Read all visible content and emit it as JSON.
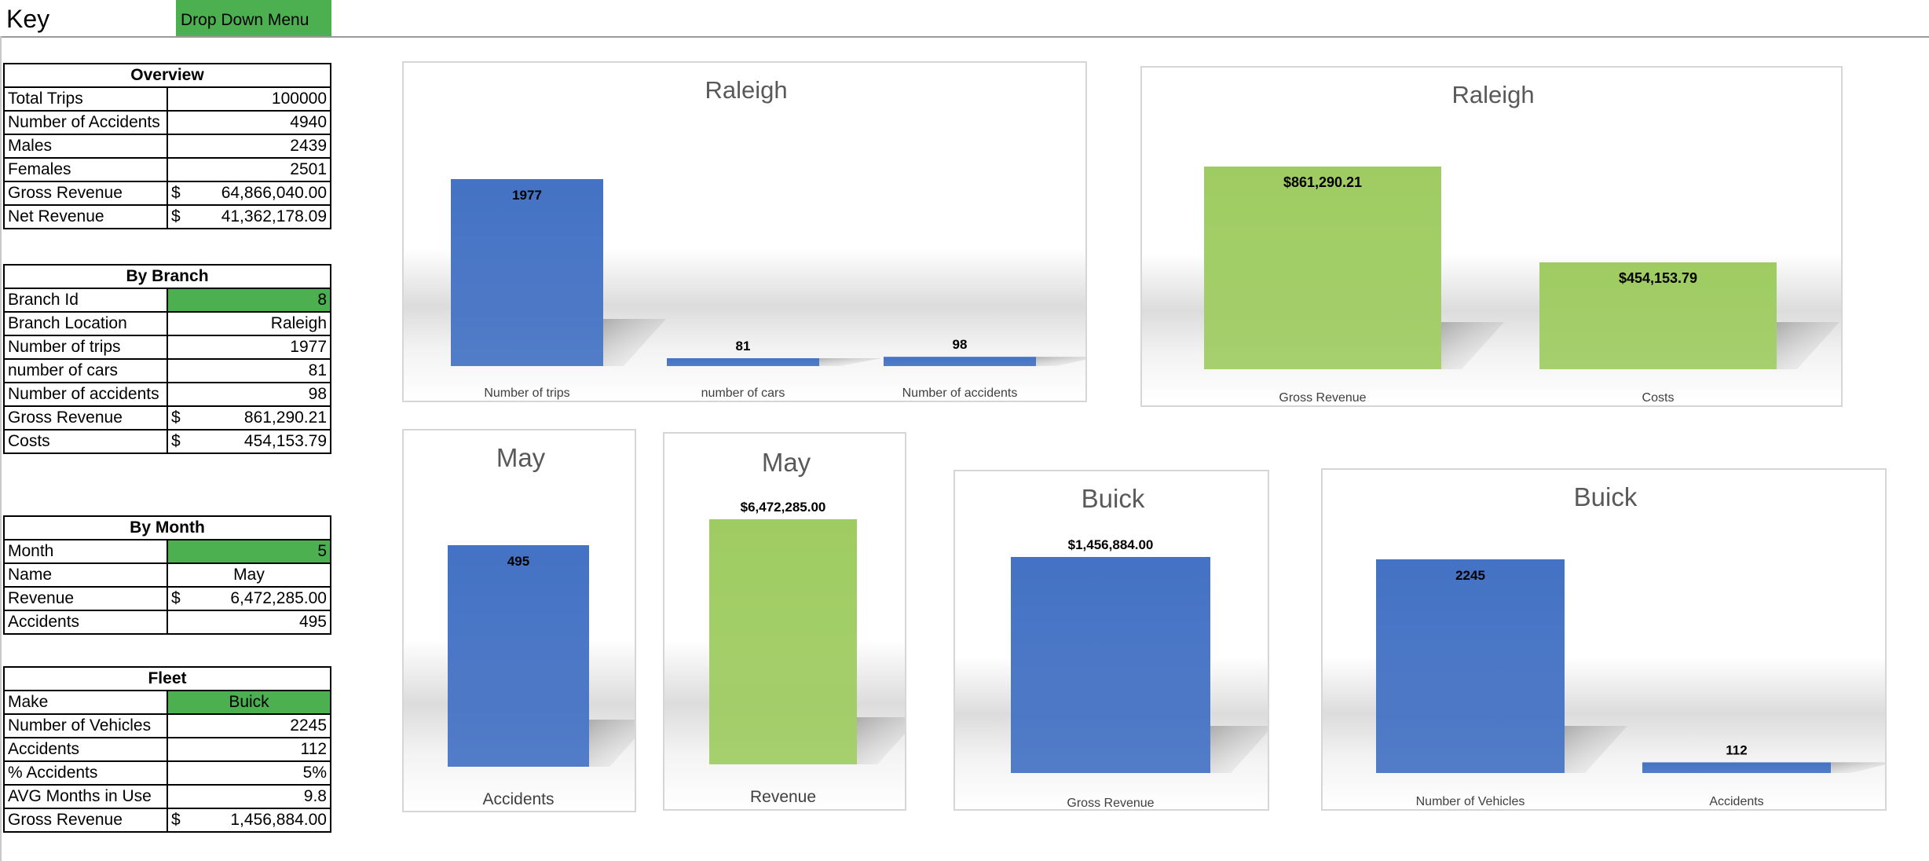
{
  "key": {
    "label": "Key",
    "dropdown": "Drop Down Menu"
  },
  "overview": {
    "header": "Overview",
    "rows": [
      {
        "label": "Total Trips",
        "value": "100000"
      },
      {
        "label": "Number of Accidents",
        "value": "4940"
      },
      {
        "label": "Males",
        "value": "2439"
      },
      {
        "label": "Females",
        "value": "2501"
      },
      {
        "label": "Gross Revenue",
        "cur": "$",
        "value": "64,866,040.00"
      },
      {
        "label": "Net Revenue",
        "cur": "$",
        "value": "41,362,178.09"
      }
    ]
  },
  "by_branch": {
    "header": "By Branch",
    "rows": [
      {
        "label": "Branch Id",
        "value": "8"
      },
      {
        "label": "Branch Location",
        "value": "Raleigh"
      },
      {
        "label": "Number of trips",
        "value": "1977"
      },
      {
        "label": "number of cars",
        "value": "81"
      },
      {
        "label": "Number of accidents",
        "value": "98"
      },
      {
        "label": "Gross Revenue",
        "cur": "$",
        "value": "861,290.21"
      },
      {
        "label": "Costs",
        "cur": "$",
        "value": "454,153.79"
      }
    ]
  },
  "by_month": {
    "header": "By Month",
    "rows": [
      {
        "label": "Month",
        "value": "5"
      },
      {
        "label": "Name",
        "value": "May"
      },
      {
        "label": "Revenue",
        "cur": "$",
        "value": "6,472,285.00"
      },
      {
        "label": "Accidents",
        "value": "495"
      }
    ]
  },
  "fleet": {
    "header": "Fleet",
    "rows": [
      {
        "label": "Make",
        "value": "Buick"
      },
      {
        "label": "Number of Vehicles",
        "value": "2245"
      },
      {
        "label": "Accidents",
        "value": "112"
      },
      {
        "label": "% Accidents",
        "value": "5%"
      },
      {
        "label": "AVG Months in Use",
        "value": "9.8"
      },
      {
        "label": "Gross Revenue",
        "cur": "$",
        "value": "1,456,884.00"
      }
    ]
  },
  "colors": {
    "blue": "#4472c4",
    "green": "#9fcc62",
    "dropdown_green": "#4caf50"
  },
  "chart_data": [
    {
      "type": "bar",
      "title": "Raleigh",
      "categories": [
        "Number of trips",
        "number of cars",
        "Number of accidents"
      ],
      "values": [
        1977,
        81,
        98
      ],
      "labels": [
        "1977",
        "81",
        "98"
      ],
      "color": "#4472c4"
    },
    {
      "type": "bar",
      "title": "Raleigh",
      "categories": [
        "Gross Revenue",
        "Costs"
      ],
      "values": [
        861290.21,
        454153.79
      ],
      "labels": [
        "$861,290.21",
        "$454,153.79"
      ],
      "color": "#9fcc62"
    },
    {
      "type": "bar",
      "title": "May",
      "categories": [
        "Accidents"
      ],
      "values": [
        495
      ],
      "labels": [
        "495"
      ],
      "color": "#4472c4"
    },
    {
      "type": "bar",
      "title": "May",
      "categories": [
        "Revenue"
      ],
      "values": [
        6472285.0
      ],
      "labels": [
        "$6,472,285.00"
      ],
      "color": "#9fcc62"
    },
    {
      "type": "bar",
      "title": "Buick",
      "categories": [
        "Gross Revenue"
      ],
      "values": [
        1456884.0
      ],
      "labels": [
        "$1,456,884.00"
      ],
      "color": "#4472c4"
    },
    {
      "type": "bar",
      "title": "Buick",
      "categories": [
        "Number of Vehicles",
        "Accidents"
      ],
      "values": [
        2245,
        112
      ],
      "labels": [
        "2245",
        "112"
      ],
      "color": "#4472c4"
    }
  ]
}
